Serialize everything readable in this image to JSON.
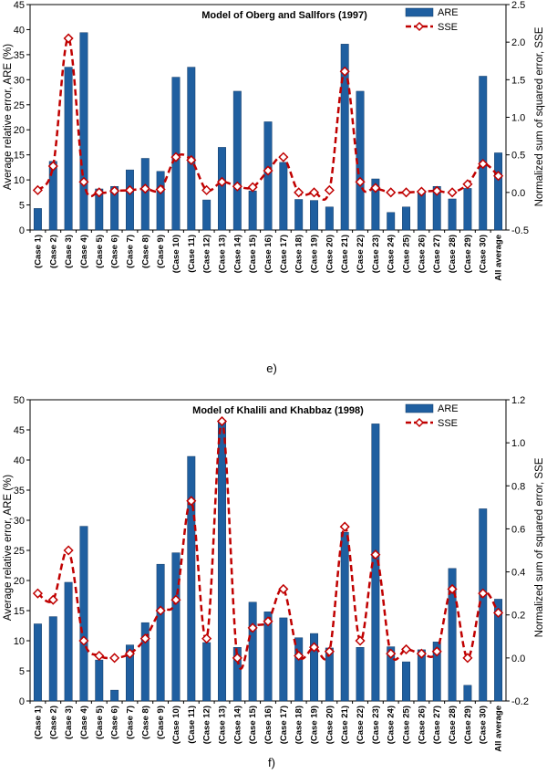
{
  "chart_data": [
    {
      "type": "bar",
      "panel_label": "e)",
      "title": "Model of Oberg and Sallfors (1997)",
      "categories": [
        "(Case 1)",
        "(Case 2)",
        "(Case 3)",
        "(Case 4)",
        "(Case 5)",
        "(Case 6)",
        "(Case 7)",
        "(Case 8)",
        "(Case 9)",
        "(Case 10)",
        "(Case 11)",
        "(Case 12)",
        "(Case 13)",
        "(Case 14)",
        "(Case 15)",
        "(Case 16)",
        "(Case 17)",
        "(Case 18)",
        "(Case 19)",
        "(Case 20)",
        "(Case 21)",
        "(Case 22)",
        "(Case 23)",
        "(Case 24)",
        "(Case 25)",
        "(Case 26)",
        "(Case 27)",
        "(Case 28)",
        "(Case 29)",
        "(Case 30)",
        "All average"
      ],
      "series": [
        {
          "name": "ARE",
          "axis": "left",
          "kind": "bar",
          "color": "#1f5fa0",
          "values": [
            4.3,
            13.7,
            32.5,
            39.4,
            8.2,
            8.7,
            12.0,
            14.3,
            11.7,
            30.5,
            32.5,
            6.0,
            16.5,
            27.7,
            7.8,
            21.6,
            13.5,
            6.1,
            5.9,
            4.6,
            37.1,
            27.7,
            10.2,
            3.5,
            4.6,
            7.6,
            8.7,
            6.2,
            8.3,
            30.7,
            15.4
          ]
        },
        {
          "name": "SSE",
          "axis": "right",
          "kind": "line",
          "color": "#c00000",
          "values": [
            0.03,
            0.35,
            2.05,
            0.14,
            0.0,
            0.02,
            0.03,
            0.05,
            0.04,
            0.47,
            0.43,
            0.03,
            0.14,
            0.08,
            0.07,
            0.29,
            0.47,
            0.0,
            0.0,
            0.03,
            1.61,
            0.14,
            0.06,
            0.0,
            0.0,
            0.01,
            0.02,
            0.0,
            0.11,
            0.38,
            0.22
          ]
        }
      ],
      "ylabel": "Average relative error, ARE (%)",
      "y2label": "Normalized sum of squared error, SSE",
      "ylim": [
        0,
        45
      ],
      "yticks": [
        "0",
        "5",
        "10",
        "15",
        "20",
        "25",
        "30",
        "35",
        "40",
        "45"
      ],
      "y2lim": [
        -0.5,
        2.5
      ],
      "y2ticks": [
        "-0.5",
        "0.0",
        "0.5",
        "1.0",
        "1.5",
        "2.0",
        "2.5"
      ],
      "legend": "top-right"
    },
    {
      "type": "bar",
      "panel_label": "f)",
      "title": "Model of Khalili and Khabbaz (1998)",
      "categories": [
        "(Case 1)",
        "(Case 2)",
        "(Case 3)",
        "(Case 4)",
        "(Case 5)",
        "(Case 6)",
        "(Case 7)",
        "(Case 8)",
        "(Case 9)",
        "(Case 10)",
        "(Case 11)",
        "(Case 12)",
        "(Case 13)",
        "(Case 14)",
        "(Case 15)",
        "(Case 16)",
        "(Case 17)",
        "(Case 18)",
        "(Case 19)",
        "(Case 20)",
        "(Case 21)",
        "(Case 22)",
        "(Case 23)",
        "(Case 24)",
        "(Case 25)",
        "(Case 26)",
        "(Case 27)",
        "(Case 28)",
        "(Case 29)",
        "(Case 30)",
        "All average"
      ],
      "series": [
        {
          "name": "ARE",
          "axis": "left",
          "kind": "bar",
          "color": "#1f5fa0",
          "values": [
            12.8,
            14.0,
            19.7,
            29.0,
            6.8,
            1.8,
            9.3,
            13.0,
            22.7,
            24.6,
            40.6,
            9.7,
            46.6,
            8.9,
            16.4,
            14.8,
            13.8,
            10.5,
            11.2,
            8.8,
            28.0,
            8.9,
            46.0,
            9.0,
            6.5,
            8.5,
            9.8,
            22.0,
            2.6,
            31.9,
            16.9
          ]
        },
        {
          "name": "SSE",
          "axis": "right",
          "kind": "line",
          "color": "#c00000",
          "values": [
            0.3,
            0.27,
            0.5,
            0.08,
            0.01,
            0.0,
            0.02,
            0.09,
            0.22,
            0.27,
            0.73,
            0.09,
            1.1,
            0.0,
            0.14,
            0.17,
            0.32,
            0.01,
            0.05,
            0.03,
            0.61,
            0.08,
            0.48,
            0.02,
            0.04,
            0.02,
            0.03,
            0.32,
            0.0,
            0.3,
            0.21
          ]
        }
      ],
      "ylabel": "Average relative error, ARE (%)",
      "y2label": "Normalized sum of squared error, SSE",
      "ylim": [
        0,
        50
      ],
      "yticks": [
        "0",
        "5",
        "10",
        "15",
        "20",
        "25",
        "30",
        "35",
        "40",
        "45",
        "50"
      ],
      "y2lim": [
        -0.2,
        1.2
      ],
      "y2ticks": [
        "-0.2",
        "0.0",
        "0.2",
        "0.4",
        "0.6",
        "0.8",
        "1.0",
        "1.2"
      ],
      "legend": "top-right"
    }
  ]
}
